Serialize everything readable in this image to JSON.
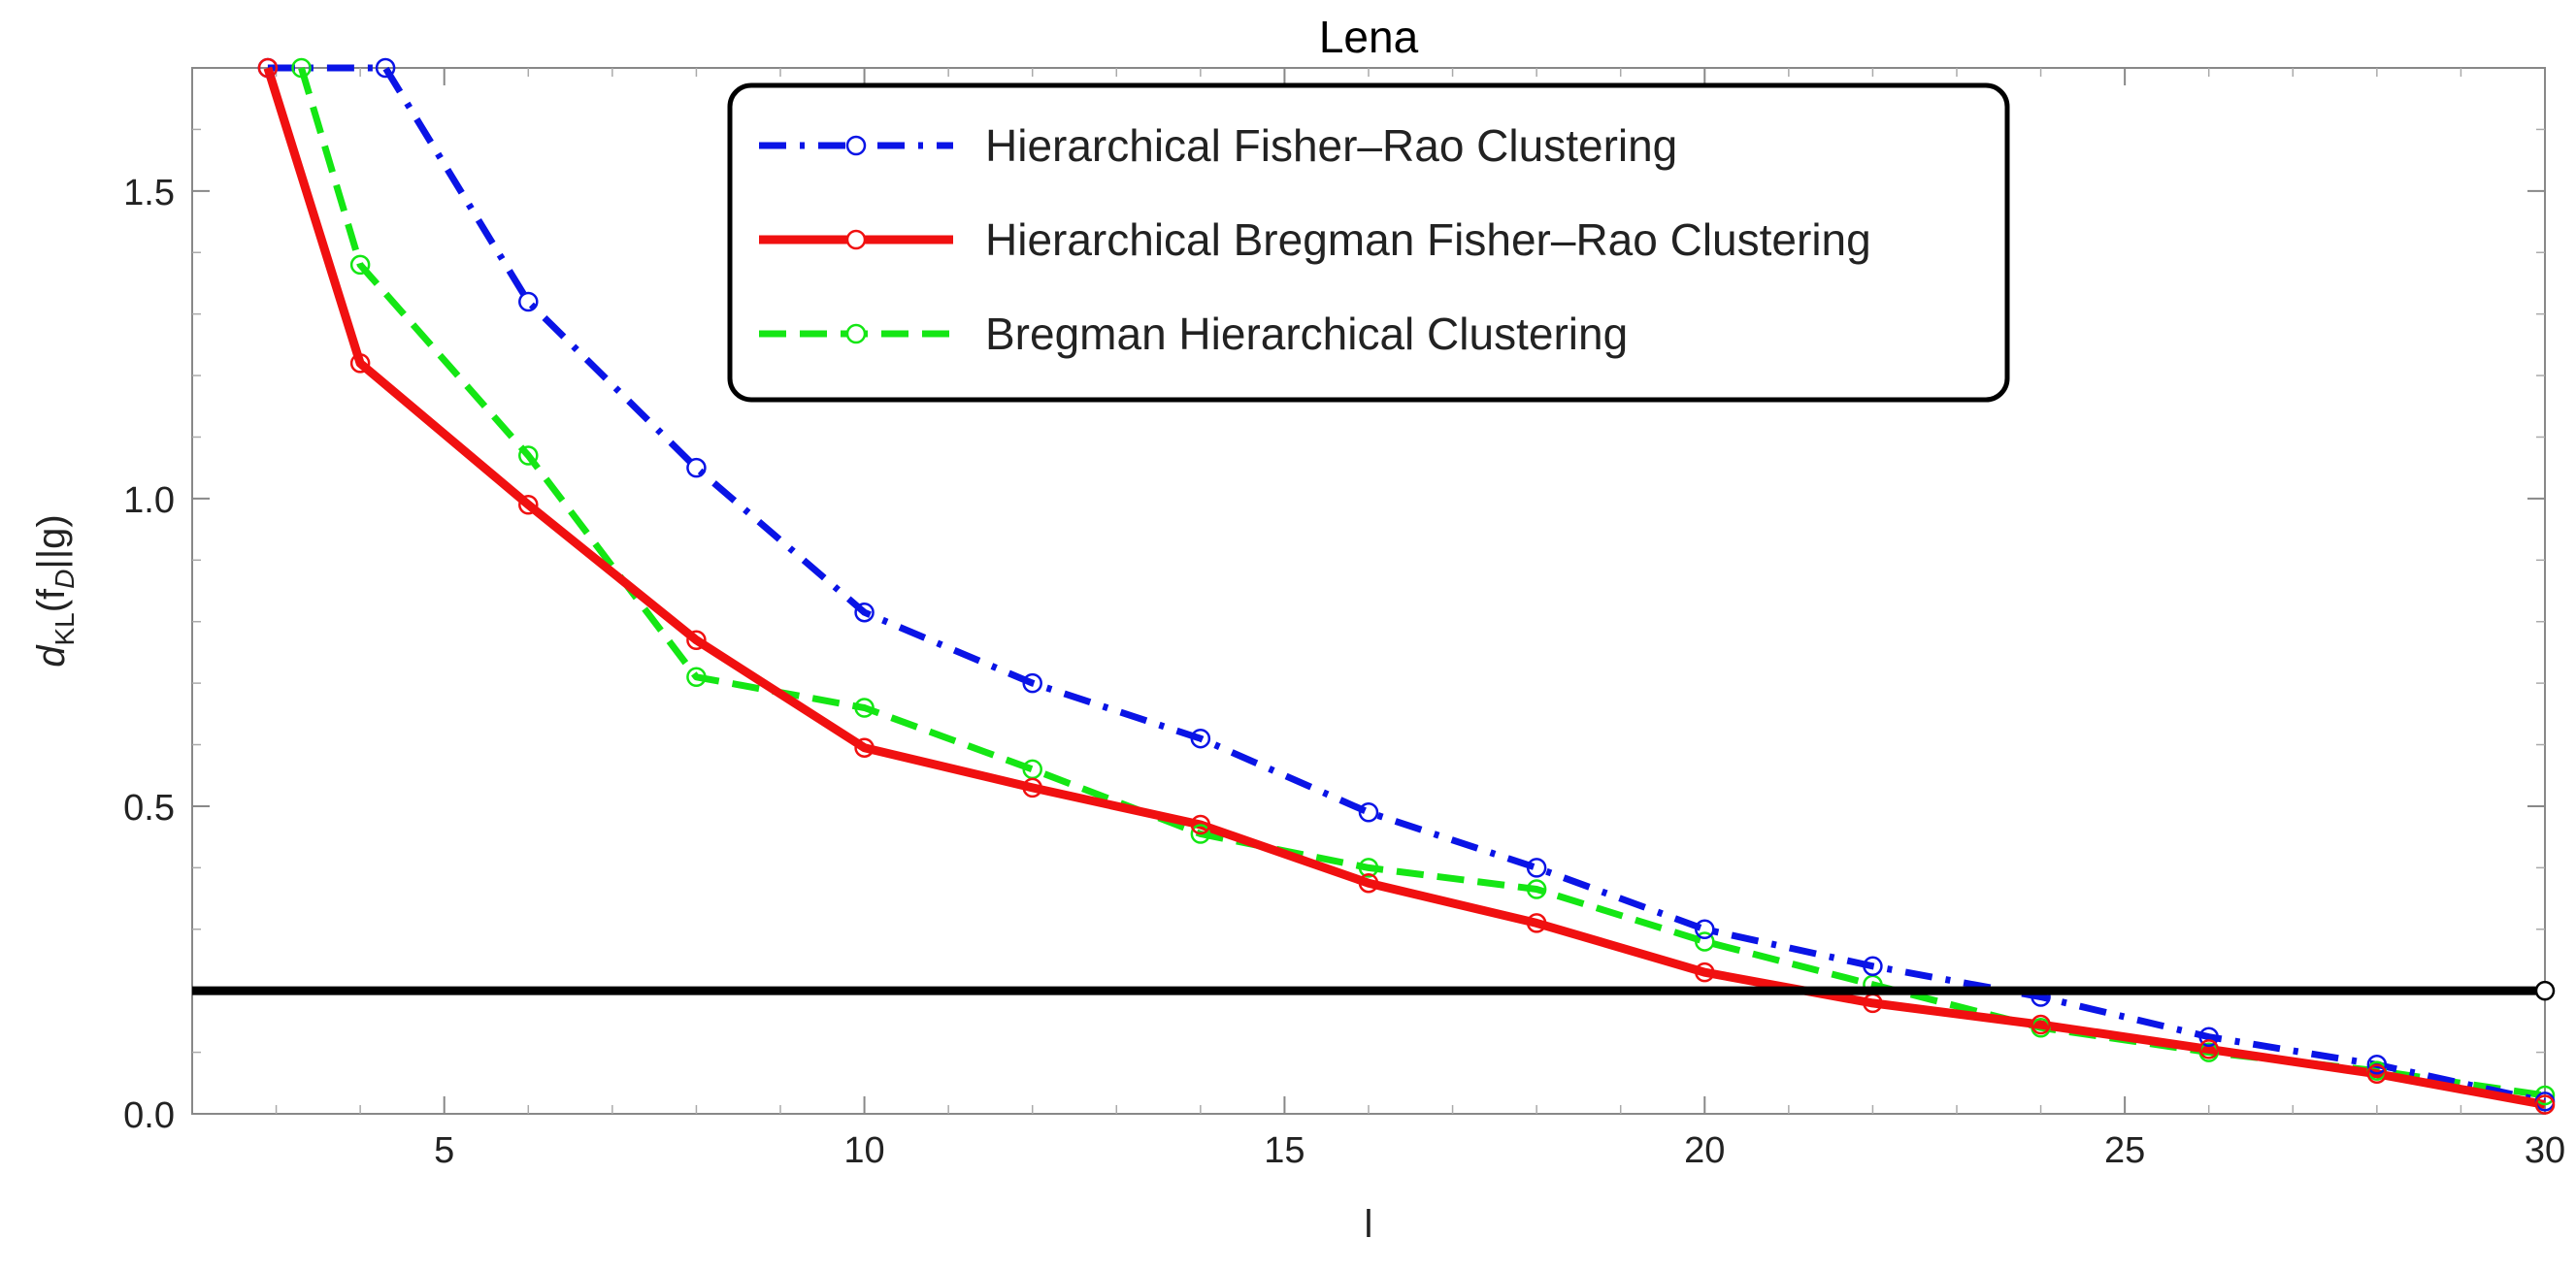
{
  "chart_data": {
    "type": "line",
    "title": "Lena",
    "xlabel": "l",
    "ylabel": {
      "main": "d",
      "sub": "KL",
      "arg": "(f",
      "arg_sub": "D",
      "arg_end": "||g)"
    },
    "xlim": [
      2,
      30
    ],
    "ylim": [
      0,
      1.7
    ],
    "xticks": [
      5,
      10,
      15,
      20,
      25,
      30
    ],
    "yticks": [
      0.0,
      0.5,
      1.0,
      1.5
    ],
    "ytick_labels": [
      "0.0",
      "0.5",
      "1.0",
      "1.5"
    ],
    "grid": false,
    "legend_position": "top-center",
    "series": [
      {
        "name": "Hierarchical Fisher–Rao Clustering",
        "color": "#0a14e6",
        "style": "dashdot",
        "x": [
          2.9,
          4.3,
          6,
          8,
          10,
          12,
          14,
          16,
          18,
          20,
          22,
          24,
          26,
          28,
          30
        ],
        "y": [
          1.7,
          1.7,
          1.32,
          1.05,
          0.815,
          0.7,
          0.61,
          0.49,
          0.4,
          0.3,
          0.24,
          0.19,
          0.125,
          0.08,
          0.02
        ]
      },
      {
        "name": "Hierarchical Bregman Fisher–Rao Clustering",
        "color": "#f01010",
        "style": "solid",
        "x": [
          2.9,
          4,
          6,
          8,
          10,
          12,
          14,
          16,
          18,
          20,
          22,
          24,
          26,
          28,
          30
        ],
        "y": [
          1.7,
          1.22,
          0.99,
          0.77,
          0.595,
          0.53,
          0.47,
          0.375,
          0.31,
          0.23,
          0.18,
          0.145,
          0.105,
          0.065,
          0.015
        ]
      },
      {
        "name": "Bregman Hierarchical Clustering",
        "color": "#14e614",
        "style": "dashed",
        "x": [
          3.3,
          4,
          6,
          8,
          10,
          12,
          14,
          16,
          18,
          20,
          22,
          24,
          26,
          28,
          30
        ],
        "y": [
          1.7,
          1.38,
          1.07,
          0.71,
          0.66,
          0.56,
          0.455,
          0.4,
          0.365,
          0.28,
          0.21,
          0.14,
          0.1,
          0.07,
          0.03
        ]
      }
    ],
    "reference_line": {
      "y": 0.2,
      "color": "#000000",
      "marker_x": 30
    }
  }
}
